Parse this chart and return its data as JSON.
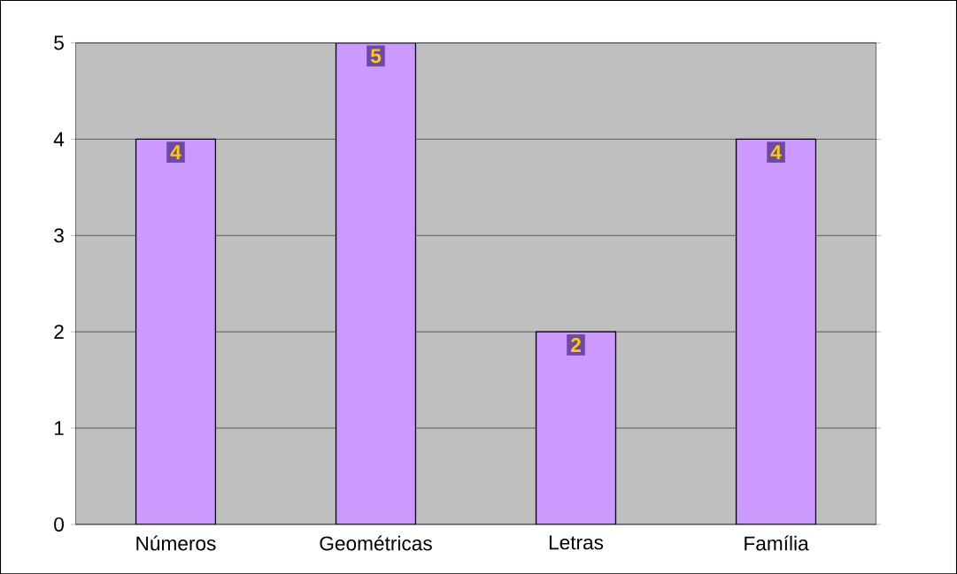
{
  "chart_data": {
    "type": "bar",
    "categories": [
      "Números",
      "Geométricas",
      "Letras",
      "Família"
    ],
    "values": [
      4,
      5,
      2,
      4
    ],
    "color": "#cc99ff",
    "ylim": [
      0,
      5
    ],
    "yticks": [
      0,
      1,
      2,
      3,
      4,
      5
    ],
    "grid": "y",
    "data_labels": true
  }
}
